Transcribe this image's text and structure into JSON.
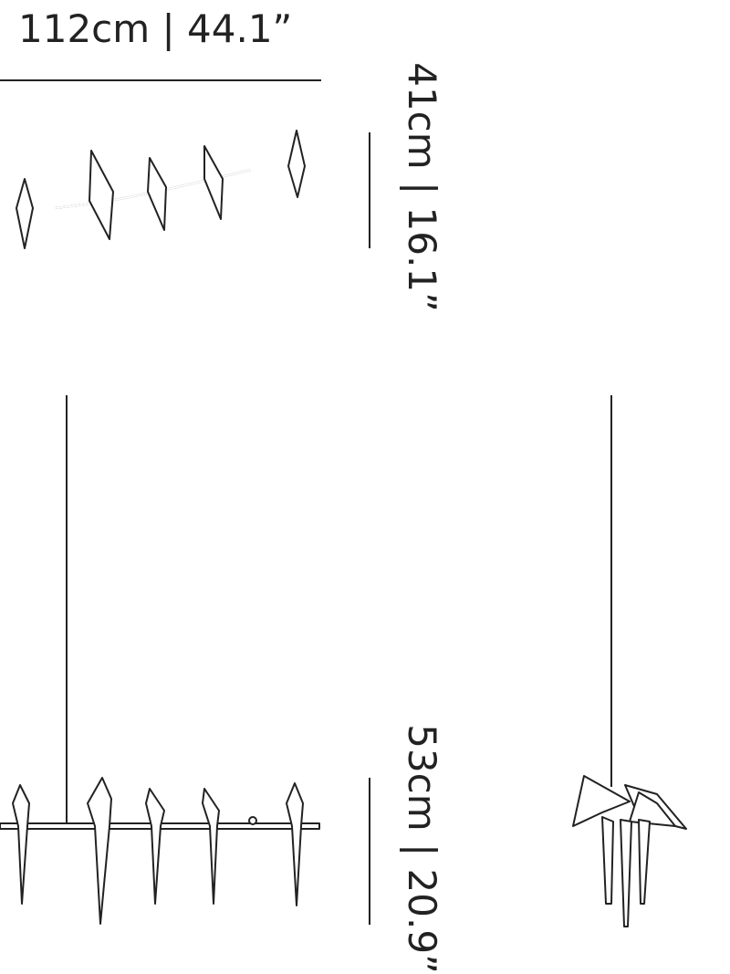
{
  "labels": {
    "width": "112cm | 44.1”",
    "depth": "41cm | 16.1”",
    "height": "53cm | 20.9”"
  }
}
